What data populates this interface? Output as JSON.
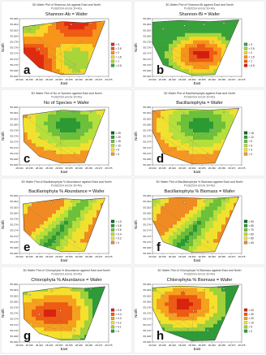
{
  "panels": [
    {
      "id": "a",
      "letter": "a",
      "caption": "3D Wafer Plot of Shannon-Ab against East and North",
      "subcaption": "Protist2014.xmsmr 30×40a",
      "title": "Shannon-Ab = Wafer",
      "legend": [
        "> 3",
        "< 2.5",
        "< 2",
        "< 1.5",
        "< 1",
        "< 0.5"
      ],
      "palette": "A"
    },
    {
      "id": "b",
      "letter": "b",
      "caption": "3D Wafer Plot of Shannon-Bi against East and North",
      "subcaption": "Protist2014.xmsmr 30×40a",
      "title": "Shannon-Bi = Wafer",
      "legend": [
        "> 3",
        "< 2.5",
        "< 2",
        "< 1.5",
        "< 1",
        "< 0.5"
      ],
      "palette": "B"
    },
    {
      "id": "c",
      "letter": "c",
      "caption": "3D Wafer Plot of No of Species against East and North",
      "subcaption": "Protist2014.xmsmr 30×40a",
      "title": "No of Species = Wafer",
      "legend": [
        "> 25",
        "< 20",
        "< 15",
        "< 10",
        "< 5",
        "< 0"
      ],
      "palette": "C"
    },
    {
      "id": "d",
      "letter": "d",
      "caption": "3D Wafer Plot of Bacillariophyta against East and North",
      "subcaption": "Protist2014.xmsmr 30×40a",
      "title": "Bacillariophyta = Wafer",
      "legend": [
        "> 15",
        "< 12",
        "< 9",
        "< 6",
        "< 3",
        "< 0"
      ],
      "palette": "C"
    },
    {
      "id": "e",
      "letter": "e",
      "caption": "3D Wafer Plot of Bacillariophyta % Abundance against East and North",
      "subcaption": "Protist2014.xmsmr 30×40a",
      "title": "Bacillariophyta % Abundance = Wafer",
      "legend": [
        "> 1.0",
        "< 0.8",
        "< 0.6",
        "< 0.4",
        "< 0.2",
        "< 0"
      ],
      "palette": "E"
    },
    {
      "id": "f",
      "letter": "f",
      "caption": "3D Wafer Plot of Bacillariophyta % Biomass against East and North",
      "subcaption": "Protist2014.xmsmr 30×40a",
      "title": "Bacillariophyta % Biomass = Wafer",
      "legend": [
        "> 90",
        "< 80",
        "< 70",
        "< 60",
        "< 50",
        "< 40"
      ],
      "palette": "E"
    },
    {
      "id": "g",
      "letter": "g",
      "caption": "3D Wafer Plot of Chlorophyta % Abundance against East and North",
      "subcaption": "Protist2014.xmsmr 30×40a",
      "title": "Chlorophyta % Abundance = Wafer",
      "legend": [
        "> 0.5",
        "< 0.4",
        "< 0.3",
        "< 0.2",
        "< 0.1",
        "< 0"
      ],
      "palette": "G"
    },
    {
      "id": "h",
      "letter": "h",
      "caption": "3D Wafer Plot of Chlorophyta % Biomass against East and North",
      "subcaption": "Protist2014.xmsmr 30×40a",
      "title": "Chlorophyta % Biomass = Wafer",
      "legend": [
        "> 40",
        "< 30",
        "< 20",
        "< 10",
        "< 5",
        "< 0"
      ],
      "palette": "H"
    }
  ],
  "axes": {
    "xlabel": "East",
    "ylabel": "North",
    "xticks": [
      "28.330",
      "28.335",
      "28.340",
      "28.345",
      "28.350",
      "28.355",
      "28.360",
      "28.365",
      "28.370",
      "28.375"
    ],
    "yticks": [
      "55.186",
      "55.184",
      "55.182",
      "55.180",
      "55.178",
      "55.176",
      "55.174",
      "55.172",
      "55.170",
      "55.168",
      "55.166"
    ]
  },
  "palettes": {
    "A": [
      "#e02a10",
      "#ef5a14",
      "#f7941a",
      "#fad427",
      "#a7d53a",
      "#38a23a"
    ],
    "B": [
      "#38a23a",
      "#a7d53a",
      "#fad427",
      "#f7941a",
      "#ef5a14",
      "#d21e10"
    ],
    "C": [
      "#0a6a2a",
      "#2b9a33",
      "#6cc03a",
      "#b5df3b",
      "#f1e12f",
      "#f59524"
    ],
    "E": [
      "#0a6a2a",
      "#2b9a33",
      "#6cc03a",
      "#b5df3b",
      "#f1e12f",
      "#f08a22"
    ],
    "G": [
      "#d8230f",
      "#ee5b14",
      "#f5a11e",
      "#f6e02c",
      "#a0d13a",
      "#2f9a38"
    ],
    "H": [
      "#d8230f",
      "#ee5b14",
      "#f5a11e",
      "#f6e02c",
      "#a0d13a",
      "#2f9a38"
    ]
  },
  "chart_data": [
    {
      "type": "heatmap",
      "panel": "a",
      "title": "Shannon-Ab = Wafer",
      "xlabel": "East",
      "ylabel": "North",
      "xlim": [
        28.33,
        28.375
      ],
      "ylim": [
        55.166,
        55.186
      ],
      "legend_levels": [
        3,
        2.5,
        2,
        1.5,
        1,
        0.5
      ]
    },
    {
      "type": "heatmap",
      "panel": "b",
      "title": "Shannon-Bi = Wafer",
      "xlabel": "East",
      "ylabel": "North",
      "xlim": [
        28.33,
        28.375
      ],
      "ylim": [
        55.166,
        55.186
      ],
      "legend_levels": [
        3,
        2.5,
        2,
        1.5,
        1,
        0.5
      ]
    },
    {
      "type": "heatmap",
      "panel": "c",
      "title": "No of Species = Wafer",
      "xlabel": "East",
      "ylabel": "North",
      "xlim": [
        28.33,
        28.375
      ],
      "ylim": [
        55.166,
        55.186
      ],
      "legend_levels": [
        25,
        20,
        15,
        10,
        5,
        0
      ]
    },
    {
      "type": "heatmap",
      "panel": "d",
      "title": "Bacillariophyta = Wafer",
      "xlabel": "East",
      "ylabel": "North",
      "xlim": [
        28.33,
        28.375
      ],
      "ylim": [
        55.166,
        55.186
      ],
      "legend_levels": [
        15,
        12,
        9,
        6,
        3,
        0
      ]
    },
    {
      "type": "heatmap",
      "panel": "e",
      "title": "Bacillariophyta % Abundance = Wafer",
      "xlabel": "East",
      "ylabel": "North",
      "xlim": [
        28.33,
        28.375
      ],
      "ylim": [
        55.166,
        55.186
      ],
      "legend_levels": [
        1.0,
        0.8,
        0.6,
        0.4,
        0.2,
        0
      ]
    },
    {
      "type": "heatmap",
      "panel": "f",
      "title": "Bacillariophyta % Biomass = Wafer",
      "xlabel": "East",
      "ylabel": "North",
      "xlim": [
        28.33,
        28.375
      ],
      "ylim": [
        55.166,
        55.186
      ],
      "legend_levels": [
        90,
        80,
        70,
        60,
        50,
        40
      ]
    },
    {
      "type": "heatmap",
      "panel": "g",
      "title": "Chlorophyta % Abundance = Wafer",
      "xlabel": "East",
      "ylabel": "North",
      "xlim": [
        28.33,
        28.375
      ],
      "ylim": [
        55.166,
        55.186
      ],
      "legend_levels": [
        0.5,
        0.4,
        0.3,
        0.2,
        0.1,
        0
      ]
    },
    {
      "type": "heatmap",
      "panel": "h",
      "title": "Chlorophyta % Biomass = Wafer",
      "xlabel": "East",
      "ylabel": "North",
      "xlim": [
        28.33,
        28.375
      ],
      "ylim": [
        55.166,
        55.186
      ],
      "legend_levels": [
        40,
        30,
        20,
        10,
        5,
        0
      ]
    }
  ]
}
